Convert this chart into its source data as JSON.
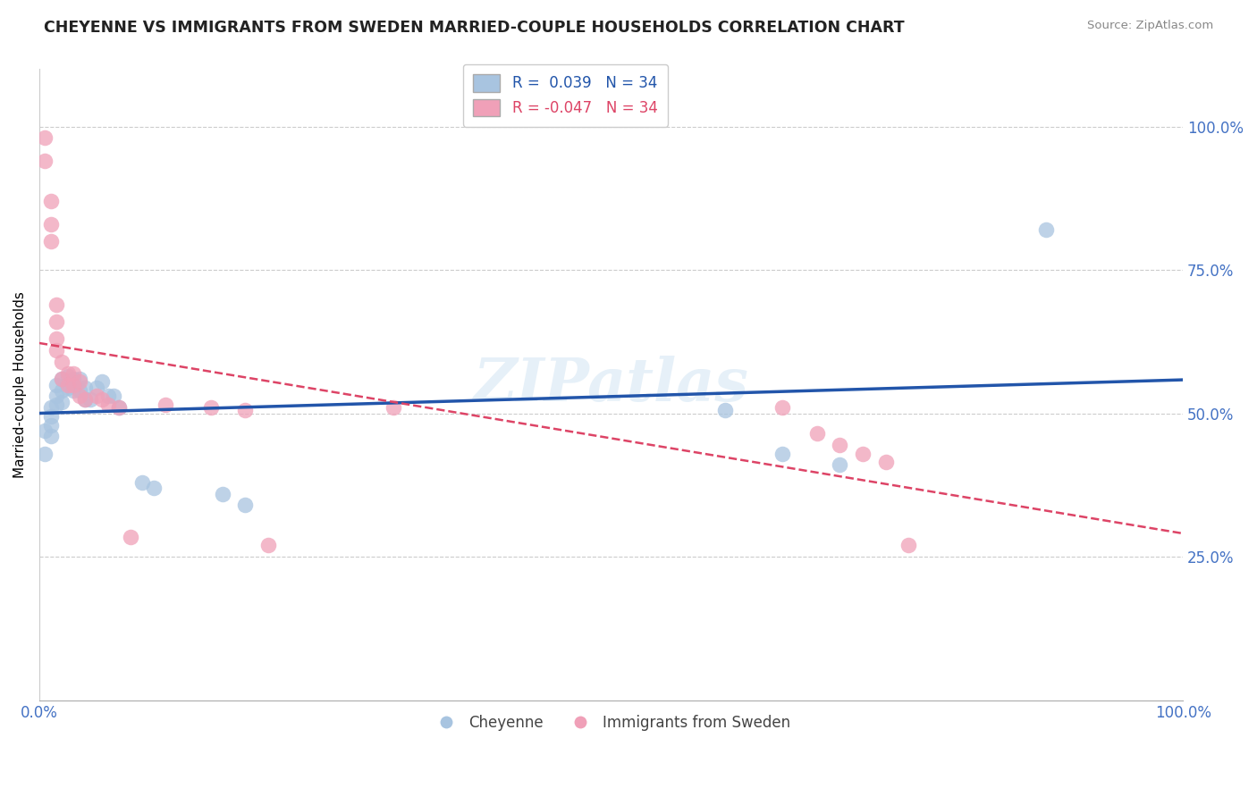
{
  "title": "CHEYENNE VS IMMIGRANTS FROM SWEDEN MARRIED-COUPLE HOUSEHOLDS CORRELATION CHART",
  "source": "Source: ZipAtlas.com",
  "ylabel": "Married-couple Households",
  "legend_blue_label": "Cheyenne",
  "legend_pink_label": "Immigrants from Sweden",
  "r_blue": 0.039,
  "n_blue": 34,
  "r_pink": -0.047,
  "n_pink": 34,
  "blue_color": "#a8c4e0",
  "pink_color": "#f0a0b8",
  "blue_line_color": "#2255aa",
  "pink_line_color": "#dd4466",
  "watermark": "ZIPatlas",
  "blue_points_x": [
    0.005,
    0.005,
    0.01,
    0.01,
    0.01,
    0.01,
    0.015,
    0.015,
    0.015,
    0.02,
    0.02,
    0.02,
    0.025,
    0.025,
    0.03,
    0.03,
    0.035,
    0.035,
    0.04,
    0.04,
    0.045,
    0.05,
    0.055,
    0.06,
    0.065,
    0.07,
    0.09,
    0.1,
    0.16,
    0.18,
    0.6,
    0.65,
    0.7,
    0.88
  ],
  "blue_points_y": [
    0.47,
    0.43,
    0.51,
    0.495,
    0.48,
    0.46,
    0.55,
    0.53,
    0.515,
    0.56,
    0.54,
    0.52,
    0.565,
    0.545,
    0.56,
    0.54,
    0.56,
    0.54,
    0.545,
    0.525,
    0.525,
    0.545,
    0.555,
    0.53,
    0.53,
    0.51,
    0.38,
    0.37,
    0.36,
    0.34,
    0.505,
    0.43,
    0.41,
    0.82
  ],
  "pink_points_x": [
    0.005,
    0.005,
    0.01,
    0.01,
    0.01,
    0.015,
    0.015,
    0.015,
    0.015,
    0.02,
    0.02,
    0.025,
    0.025,
    0.03,
    0.03,
    0.035,
    0.035,
    0.04,
    0.05,
    0.055,
    0.06,
    0.07,
    0.08,
    0.11,
    0.15,
    0.18,
    0.2,
    0.31,
    0.65,
    0.68,
    0.7,
    0.72,
    0.74,
    0.76
  ],
  "pink_points_y": [
    0.98,
    0.94,
    0.87,
    0.83,
    0.8,
    0.69,
    0.66,
    0.63,
    0.61,
    0.59,
    0.56,
    0.57,
    0.55,
    0.57,
    0.55,
    0.555,
    0.53,
    0.525,
    0.53,
    0.525,
    0.515,
    0.51,
    0.285,
    0.515,
    0.51,
    0.505,
    0.27,
    0.51,
    0.51,
    0.465,
    0.445,
    0.43,
    0.415,
    0.27
  ]
}
